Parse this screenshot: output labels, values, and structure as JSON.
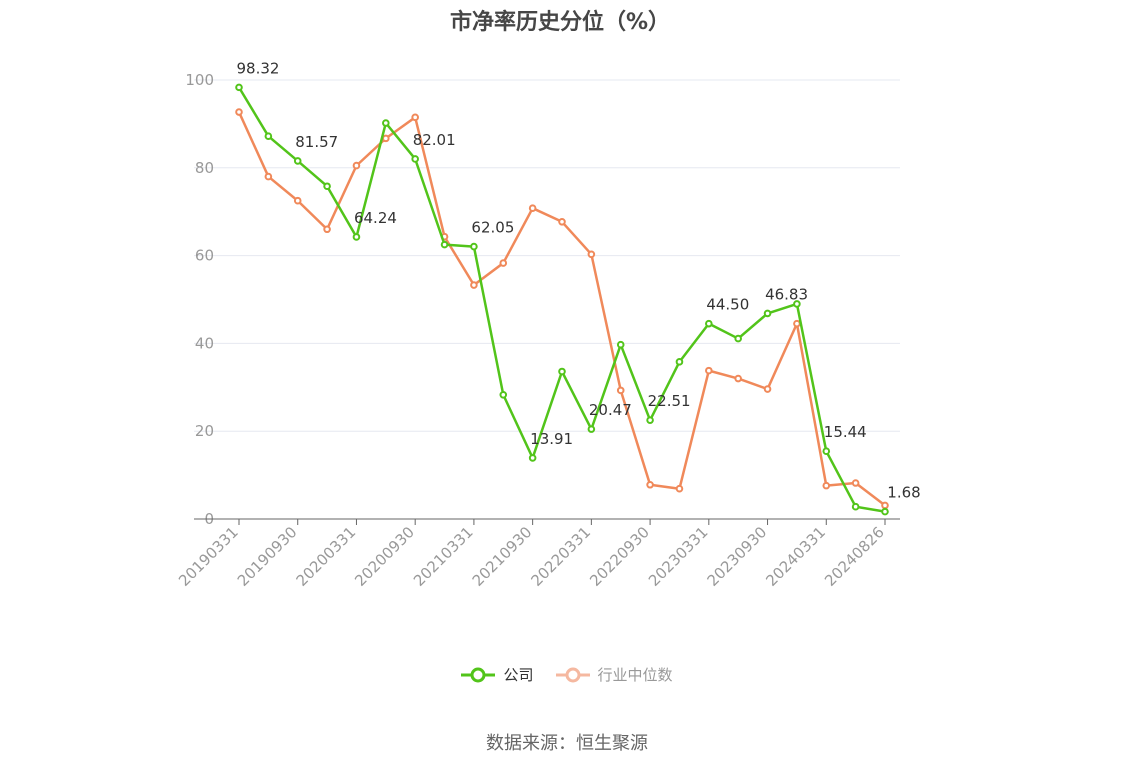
{
  "title": "市净率历史分位（%）",
  "source_text": "数据来源：恒生聚源",
  "colors": {
    "company": "#52c41a",
    "industry": "#f0895a",
    "industry_legend": "#f5b8a0",
    "grid": "#e6e8f0",
    "axis": "#666666",
    "tick_text": "#999999"
  },
  "chart_data": {
    "type": "line",
    "title": "市净率历史分位（%）",
    "xlabel": "",
    "ylabel": "",
    "ylim": [
      0,
      100
    ],
    "yticks": [
      0,
      20,
      40,
      60,
      80,
      100
    ],
    "grid": true,
    "legend_position": "bottom-center",
    "x": [
      "20190331",
      "20190630",
      "20190930",
      "20191231",
      "20200331",
      "20200630",
      "20200930",
      "20201231",
      "20210331",
      "20210630",
      "20210930",
      "20211231",
      "20220331",
      "20220630",
      "20220930",
      "20221231",
      "20230331",
      "20230630",
      "20230930",
      "20231231",
      "20240331",
      "20240630",
      "20240826"
    ],
    "x_tick_labels": [
      "20190331",
      "20190930",
      "20200331",
      "20200930",
      "20210331",
      "20210930",
      "20220331",
      "20220930",
      "20230331",
      "20230930",
      "20240331",
      "20240826"
    ],
    "series": [
      {
        "name": "公司",
        "values": [
          98.32,
          87.2,
          81.57,
          75.8,
          64.24,
          90.2,
          82.01,
          62.5,
          62.05,
          28.3,
          13.91,
          33.6,
          20.47,
          39.7,
          22.51,
          35.8,
          44.5,
          41.1,
          46.83,
          49.0,
          15.44,
          2.8,
          1.68
        ],
        "labels": [
          "98.32",
          "",
          "81.57",
          "",
          "64.24",
          "",
          "82.01",
          "",
          "62.05",
          "",
          "13.91",
          "",
          "20.47",
          "",
          "22.51",
          "",
          "44.50",
          "",
          "46.83",
          "",
          "15.44",
          "",
          "1.68"
        ]
      },
      {
        "name": "行业中位数",
        "values": [
          92.7,
          78.0,
          72.5,
          66.0,
          80.5,
          86.7,
          91.5,
          64.3,
          53.3,
          58.3,
          70.8,
          67.7,
          60.3,
          29.3,
          7.8,
          6.9,
          33.8,
          32.0,
          29.6,
          44.5,
          7.6,
          8.2,
          3.1
        ]
      }
    ]
  }
}
